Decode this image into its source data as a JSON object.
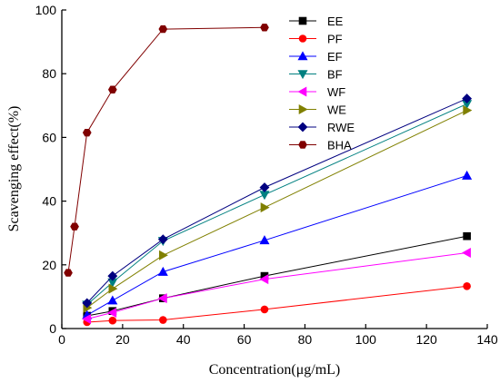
{
  "chart_data": {
    "type": "line",
    "xlabel": "Concentration(μg/mL)",
    "ylabel": "Scavenging effect(%)",
    "xlim": [
      0,
      140
    ],
    "ylim": [
      0,
      100
    ],
    "xticks": [
      "0",
      "20",
      "40",
      "60",
      "80",
      "100",
      "120",
      "140"
    ],
    "yticks": [
      "0",
      "20",
      "40",
      "60",
      "80",
      "100"
    ],
    "grid": false,
    "legend_position": "right, upper-middle",
    "series": [
      {
        "name": "EE",
        "color": "#000000",
        "marker": "square",
        "x": [
          8.3,
          16.7,
          33.3,
          66.7,
          133.3
        ],
        "y": [
          4.0,
          5.5,
          9.5,
          16.5,
          29.0
        ]
      },
      {
        "name": "PF",
        "color": "#ff0000",
        "marker": "circle",
        "x": [
          8.3,
          16.7,
          33.3,
          66.7,
          133.3
        ],
        "y": [
          2.0,
          2.5,
          2.7,
          6.0,
          13.3
        ]
      },
      {
        "name": "EF",
        "color": "#0000ff",
        "marker": "triangle-up",
        "x": [
          8.3,
          16.7,
          33.3,
          66.7,
          133.3
        ],
        "y": [
          4.2,
          8.8,
          17.8,
          27.7,
          48.0
        ]
      },
      {
        "name": "BF",
        "color": "#008080",
        "marker": "triangle-down",
        "x": [
          8.3,
          16.7,
          33.3,
          66.7,
          133.3
        ],
        "y": [
          7.5,
          14.5,
          27.5,
          42.0,
          70.5
        ]
      },
      {
        "name": "WF",
        "color": "#ff00ff",
        "marker": "triangle-left",
        "x": [
          8.3,
          16.7,
          33.3,
          66.7,
          133.3
        ],
        "y": [
          3.0,
          5.0,
          9.5,
          15.5,
          23.8
        ]
      },
      {
        "name": "WE",
        "color": "#808000",
        "marker": "triangle-right",
        "x": [
          8.3,
          16.7,
          33.3,
          66.7,
          133.3
        ],
        "y": [
          6.5,
          12.5,
          23.0,
          38.0,
          68.5
        ]
      },
      {
        "name": "RWE",
        "color": "#000080",
        "marker": "diamond",
        "x": [
          8.3,
          16.7,
          33.3,
          66.7,
          133.3
        ],
        "y": [
          8.0,
          16.5,
          28.0,
          44.3,
          72.2
        ]
      },
      {
        "name": "BHA",
        "color": "#800000",
        "marker": "hexagon",
        "x": [
          2.1,
          4.2,
          8.3,
          16.7,
          33.3,
          66.7
        ],
        "y": [
          17.5,
          32.0,
          61.5,
          75.0,
          94.0,
          94.5
        ]
      }
    ]
  }
}
